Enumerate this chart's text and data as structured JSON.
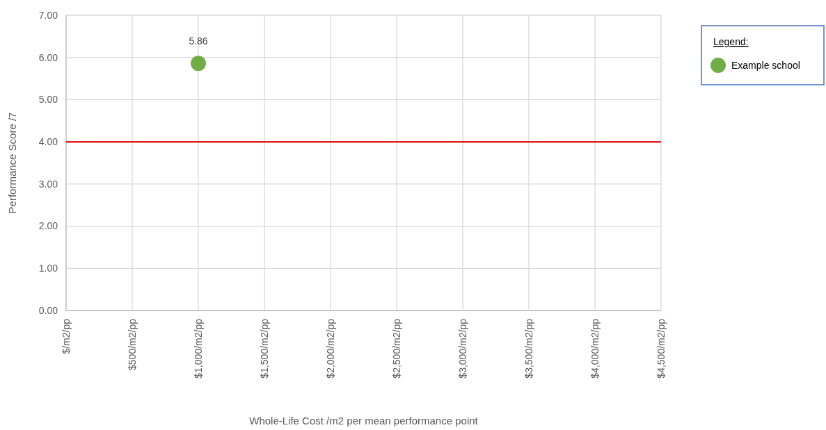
{
  "chart_data": {
    "type": "scatter",
    "xlabel": "Whole-Life Cost /m2 per mean performance point",
    "ylabel": "Performance Score /7",
    "legend_title": "Legend:",
    "categories": [
      "$/m2/pp",
      "$500/m2/pp",
      "$1,000/m2/pp",
      "$1,500/m2/pp",
      "$2,000/m2/pp",
      "$2,500/m2/pp",
      "$3,000/m2/pp",
      "$3,500/m2/pp",
      "$4,000/m2/pp",
      "$4,500/m2/pp"
    ],
    "series": [
      {
        "name": "Example school",
        "color": "#70ad47",
        "values": [
          null,
          null,
          5.86,
          null,
          null,
          null,
          null,
          null,
          null,
          null
        ]
      }
    ],
    "data_labels": true,
    "marker": "circle",
    "grid": true,
    "legend": "top right",
    "ylim": [
      0,
      7
    ],
    "yticks": [
      {
        "value": 0,
        "label": "0.00"
      },
      {
        "value": 1,
        "label": "1.00"
      },
      {
        "value": 2,
        "label": "2.00"
      },
      {
        "value": 3,
        "label": "3.00"
      },
      {
        "value": 4,
        "label": "4.00"
      },
      {
        "value": 5,
        "label": "5.00"
      },
      {
        "value": 6,
        "label": "6.00"
      },
      {
        "value": 7,
        "label": "7.00"
      }
    ],
    "ref_lines": [
      {
        "axis": "y",
        "value": 4,
        "color": "#e02020"
      }
    ]
  }
}
